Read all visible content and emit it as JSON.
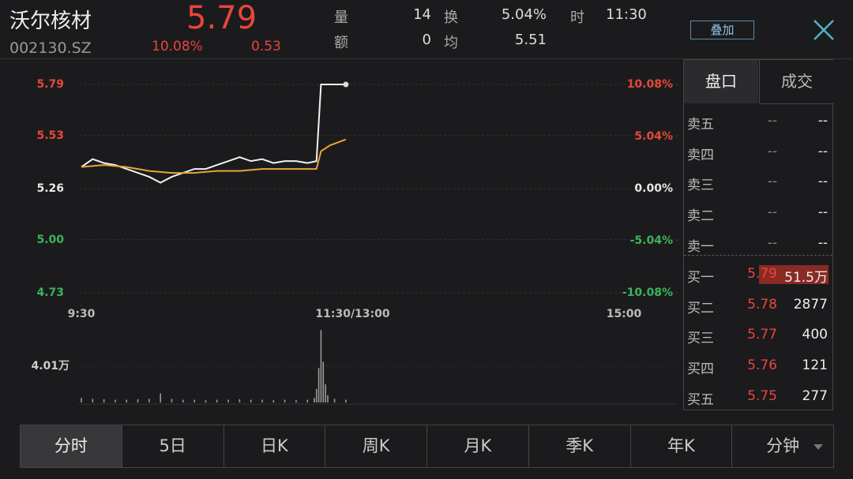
{
  "header": {
    "name": "沃尔核材",
    "code": "002130.SZ",
    "price": "5.79",
    "change_pct": "10.08%",
    "change": "0.53",
    "stats": [
      {
        "label": "量",
        "value": "14"
      },
      {
        "label": "额",
        "value": "0"
      },
      {
        "label": "换",
        "value": "5.04%"
      },
      {
        "label": "均",
        "value": "5.51"
      },
      {
        "label": "时",
        "value": "11:30"
      }
    ],
    "overlay_button": "叠加"
  },
  "price_chart": {
    "type": "line",
    "up_color": "#e8463a",
    "down_color": "#3cb35a",
    "flat_color": "#e6e6e6",
    "xlim": [
      0,
      240
    ],
    "xticks": [
      {
        "value": 0,
        "label": "9:30"
      },
      {
        "value": 120,
        "label": "11:30/13:00"
      },
      {
        "value": 240,
        "label": "15:00"
      }
    ],
    "ylim": [
      4.73,
      5.79
    ],
    "yticks": [
      {
        "value": 5.79,
        "label": "5.79"
      },
      {
        "value": 5.53,
        "label": "5.53"
      },
      {
        "value": 5.26,
        "label": "5.26"
      },
      {
        "value": 5.0,
        "label": "5.00"
      },
      {
        "value": 4.73,
        "label": "4.73"
      }
    ],
    "y2lim": [
      -10.08,
      10.08
    ],
    "y2ticks": [
      {
        "value": 10.08,
        "label": "10.08%"
      },
      {
        "value": 5.04,
        "label": "5.04%"
      },
      {
        "value": 0,
        "label": "0.00%"
      },
      {
        "value": -5.04,
        "label": "-5.04%"
      },
      {
        "value": -10.08,
        "label": "-10.08%"
      }
    ],
    "grid": true,
    "series": [
      {
        "name": "price",
        "color": "#f2f2f2",
        "x": [
          0,
          5,
          10,
          15,
          20,
          25,
          30,
          35,
          40,
          45,
          50,
          55,
          60,
          65,
          70,
          75,
          80,
          85,
          90,
          95,
          100,
          104,
          106,
          110,
          117
        ],
        "values": [
          5.37,
          5.41,
          5.39,
          5.38,
          5.36,
          5.34,
          5.32,
          5.29,
          5.32,
          5.34,
          5.36,
          5.36,
          5.38,
          5.4,
          5.42,
          5.4,
          5.41,
          5.39,
          5.4,
          5.4,
          5.39,
          5.4,
          5.79,
          5.79,
          5.79
        ]
      },
      {
        "name": "average",
        "color": "#e8a33a",
        "x": [
          0,
          10,
          20,
          30,
          40,
          50,
          60,
          70,
          80,
          90,
          100,
          104,
          106,
          110,
          117
        ],
        "values": [
          5.37,
          5.38,
          5.37,
          5.35,
          5.34,
          5.34,
          5.35,
          5.35,
          5.36,
          5.36,
          5.36,
          5.36,
          5.45,
          5.48,
          5.51
        ]
      }
    ]
  },
  "volume_chart": {
    "type": "bar",
    "color": "#9a9a9a",
    "ylim": [
      0,
      8.02
    ],
    "yticks": [
      {
        "value": 4.01,
        "label": "4.01万"
      }
    ],
    "x": [
      0,
      5,
      10,
      15,
      20,
      25,
      30,
      35,
      40,
      45,
      50,
      55,
      60,
      65,
      70,
      75,
      80,
      85,
      90,
      95,
      100,
      103,
      104,
      105,
      106,
      107,
      108,
      109,
      112,
      117
    ],
    "values": [
      0.5,
      0.4,
      0.35,
      0.3,
      0.3,
      0.35,
      0.4,
      1.0,
      0.4,
      0.3,
      0.3,
      0.25,
      0.3,
      0.3,
      0.35,
      0.3,
      0.3,
      0.25,
      0.3,
      0.25,
      0.3,
      0.5,
      1.5,
      3.8,
      8.0,
      4.5,
      2.0,
      0.8,
      0.4,
      0.3
    ]
  },
  "order_book": {
    "tabs": [
      "盘口",
      "成交"
    ],
    "sell": [
      {
        "label": "卖五",
        "price": "--",
        "volume": "--"
      },
      {
        "label": "卖四",
        "price": "--",
        "volume": "--"
      },
      {
        "label": "卖三",
        "price": "--",
        "volume": "--"
      },
      {
        "label": "卖二",
        "price": "--",
        "volume": "--"
      },
      {
        "label": "卖一",
        "price": "--",
        "volume": "--"
      }
    ],
    "buy": [
      {
        "label": "买一",
        "price": "5.79",
        "volume": "51.5万"
      },
      {
        "label": "买二",
        "price": "5.78",
        "volume": "2877"
      },
      {
        "label": "买三",
        "price": "5.77",
        "volume": "400"
      },
      {
        "label": "买四",
        "price": "5.76",
        "volume": "121"
      },
      {
        "label": "买五",
        "price": "5.75",
        "volume": "277"
      }
    ]
  },
  "period_tabs": [
    "分时",
    "5日",
    "日K",
    "周K",
    "月K",
    "季K",
    "年K",
    "分钟"
  ]
}
